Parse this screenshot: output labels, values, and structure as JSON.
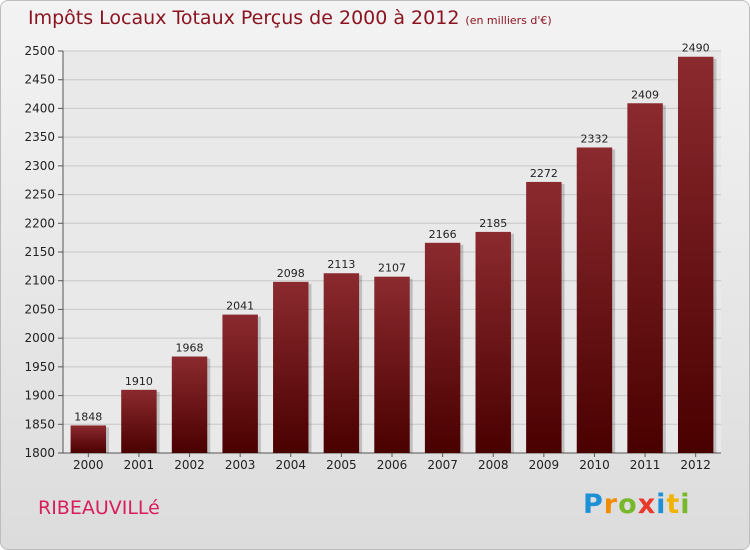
{
  "header": {
    "title": "Impôts Locaux Totaux Perçus de 2000 à 2012",
    "unit": "(en milliers d'€)"
  },
  "footer": {
    "city": "RIBEAUVILLé",
    "logo": "Proxiti"
  },
  "colors": {
    "bar_top": "#8b2a2f",
    "bar_bottom": "#4a0000",
    "title": "#8a1420",
    "city": "#d81e5b"
  },
  "chart_data": {
    "type": "bar",
    "title": "Impôts Locaux Totaux Perçus de 2000 à 2012",
    "subtitle": "(en milliers d'€)",
    "categories": [
      "2000",
      "2001",
      "2002",
      "2003",
      "2004",
      "2005",
      "2006",
      "2007",
      "2008",
      "2009",
      "2010",
      "2011",
      "2012"
    ],
    "values": [
      1848,
      1910,
      1968,
      2041,
      2098,
      2113,
      2107,
      2166,
      2185,
      2272,
      2332,
      2409,
      2490
    ],
    "ylim": [
      1800,
      2500
    ],
    "yticks": [
      1800,
      1850,
      1900,
      1950,
      2000,
      2050,
      2100,
      2150,
      2200,
      2250,
      2300,
      2350,
      2400,
      2450,
      2500
    ],
    "grid": true,
    "xlabel": "",
    "ylabel": ""
  }
}
